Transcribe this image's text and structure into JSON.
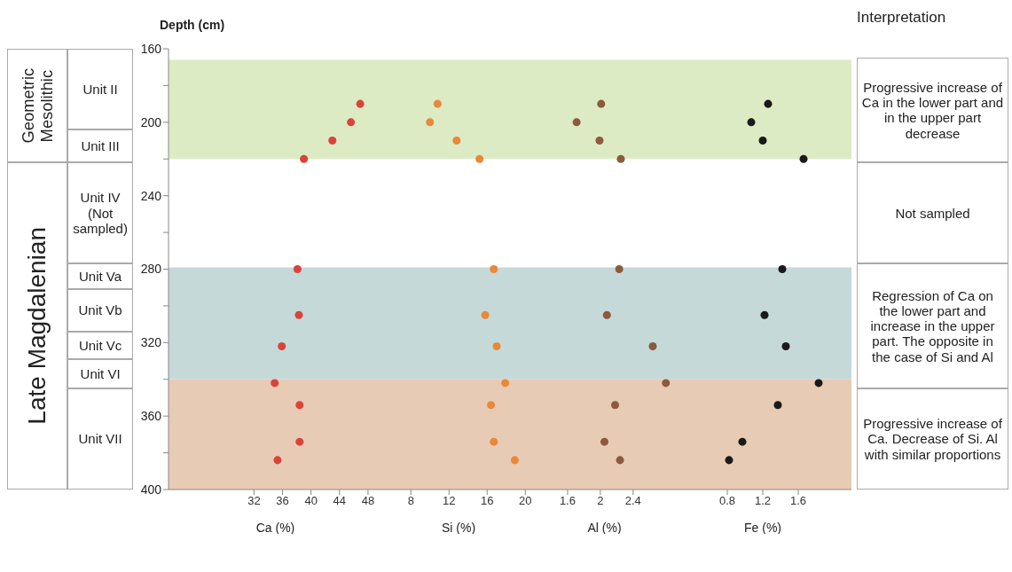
{
  "chart_data": [
    {
      "type": "other",
      "annotations": [
        "Geometric Mesolithic",
        "Late Magdalenian",
        "Unit II",
        "Unit III",
        "Unit IV (Not sampled)",
        "Unit Va",
        "Unit Vb",
        "Unit Vc",
        "Unit VI",
        "Unit VII"
      ]
    },
    {
      "type": "scatter",
      "xlabel": "Ca (%)",
      "ylabel": "Depth (cm)",
      "marker": "circle",
      "xlim": [
        20,
        50
      ],
      "xticks": [
        32,
        36,
        40,
        44,
        48
      ],
      "ylim": [
        400,
        160
      ],
      "yticks": [
        160,
        {
          "value": 180,
          "label": null
        },
        200,
        {
          "value": 220,
          "label": null
        },
        240,
        {
          "value": 260,
          "label": null
        },
        280,
        {
          "value": 300,
          "label": null
        },
        320,
        {
          "value": 340,
          "label": null
        },
        360,
        {
          "value": 380,
          "label": null
        },
        400
      ],
      "series": [
        {
          "color": "#d9443a",
          "x": [
            46.9,
            45.6,
            43.0,
            39.0,
            38.1,
            38.3,
            35.9,
            34.9,
            38.4,
            38.4,
            35.3
          ],
          "values": [
            190,
            200,
            210,
            220,
            280,
            305,
            322,
            342,
            354,
            374,
            384
          ]
        }
      ],
      "bands": [
        {
          "axis": "y",
          "from": 166,
          "to": 220,
          "color": "#dcebc4"
        },
        {
          "axis": "y",
          "from": 279,
          "to": 340,
          "color": "#c5d9d9"
        },
        {
          "axis": "y",
          "from": 340,
          "to": 400,
          "color": "#e8cbb4"
        }
      ]
    },
    {
      "type": "scatter",
      "xlabel": "Si (%)",
      "marker": "circle",
      "tick_labels": "x",
      "xlim": [
        5,
        21
      ],
      "xticks": [
        8,
        12,
        16,
        20
      ],
      "ylim": [
        400,
        160
      ],
      "series": [
        {
          "color": "#e8893a",
          "x": [
            10.8,
            10.0,
            12.8,
            15.2,
            16.7,
            15.8,
            17.0,
            17.9,
            16.4,
            16.7,
            18.9
          ],
          "values": [
            190,
            200,
            210,
            220,
            280,
            305,
            322,
            342,
            354,
            374,
            384
          ]
        }
      ],
      "bands": [
        {
          "axis": "y",
          "from": 166,
          "to": 220,
          "color": "#dcebc4"
        },
        {
          "axis": "y",
          "from": 279,
          "to": 340,
          "color": "#c5d9d9"
        },
        {
          "axis": "y",
          "from": 340,
          "to": 400,
          "color": "#e8cbb4"
        }
      ]
    },
    {
      "type": "scatter",
      "xlabel": "Al (%)",
      "marker": "circle",
      "tick_labels": "x",
      "xlim": [
        1.2,
        2.9
      ],
      "xticks": [
        1.6,
        2,
        2.4
      ],
      "ylim": [
        400,
        160
      ],
      "series": [
        {
          "color": "#8c5a3c",
          "x": [
            2.01,
            1.71,
            1.99,
            2.25,
            2.23,
            2.08,
            2.64,
            2.8,
            2.18,
            2.05,
            2.24
          ],
          "values": [
            190,
            200,
            210,
            220,
            280,
            305,
            322,
            342,
            354,
            374,
            384
          ]
        }
      ],
      "bands": [
        {
          "axis": "y",
          "from": 166,
          "to": 220,
          "color": "#dcebc4"
        },
        {
          "axis": "y",
          "from": 279,
          "to": 340,
          "color": "#c5d9d9"
        },
        {
          "axis": "y",
          "from": 340,
          "to": 400,
          "color": "#e8cbb4"
        }
      ]
    },
    {
      "type": "scatter",
      "xlabel": "Fe (%)",
      "marker": "circle",
      "tick_labels": "x",
      "xlim": [
        0.2,
        2.2
      ],
      "xticks": [
        0.8,
        1.2,
        1.6
      ],
      "ylim": [
        400,
        160
      ],
      "series": [
        {
          "color": "#1a1a1a",
          "x": [
            1.26,
            1.07,
            1.2,
            1.66,
            1.42,
            1.22,
            1.46,
            1.83,
            1.37,
            0.97,
            0.82
          ],
          "values": [
            190,
            200,
            210,
            220,
            280,
            305,
            322,
            342,
            354,
            374,
            384
          ]
        }
      ],
      "bands": [
        {
          "axis": "y",
          "from": 166,
          "to": 220,
          "color": "#dcebc4"
        },
        {
          "axis": "y",
          "from": 279,
          "to": 340,
          "color": "#c5d9d9"
        },
        {
          "axis": "y",
          "from": 340,
          "to": 400,
          "color": "#e8cbb4"
        }
      ]
    },
    {
      "type": "other",
      "annotations": [
        "Interpretation",
        "Progressive increase of Ca in the lower part and in the upper part decrease",
        "Not sampled",
        "Regression of Ca on the lower part and increase in the upper part. The opposite in the case of Si and Al",
        "Progressive increase of Ca. Decrease of Si. Al with similar proportions"
      ]
    }
  ]
}
